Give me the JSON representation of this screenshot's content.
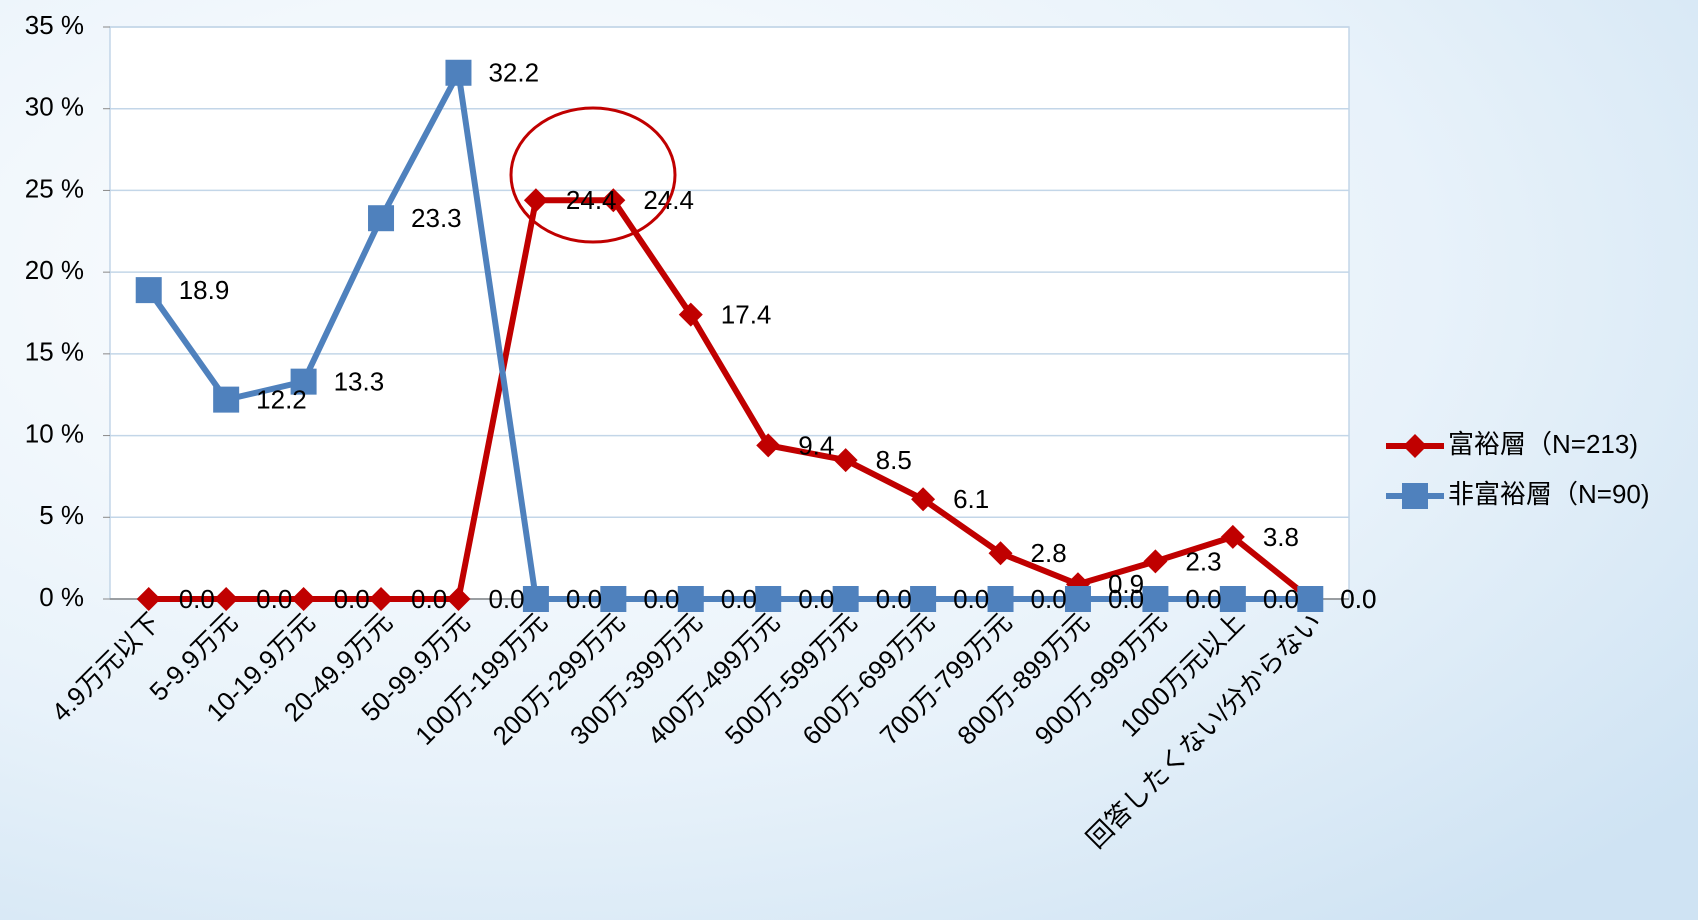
{
  "chart_data": {
    "type": "line",
    "categories": [
      "4.9万元以下",
      "5-9.9万元",
      "10-19.9万元",
      "20-49.9万元",
      "50-99.9万元",
      "100万-199万元",
      "200万-299万元",
      "300万-399万元",
      "400万-499万元",
      "500万-599万元",
      "600万-699万元",
      "700万-799万元",
      "800万-899万元",
      "900万-999万元",
      "1000万元以上",
      "回答したくない/分からない"
    ],
    "series": [
      {
        "name": "富裕層（N=213)",
        "color": "#c00000",
        "marker": "diamond",
        "values": [
          0,
          0,
          0,
          0,
          0,
          24.4,
          24.4,
          17.4,
          9.4,
          8.5,
          6.1,
          2.8,
          0.9,
          2.3,
          3.8,
          0
        ],
        "value_labels": [
          "0.0",
          "0.0",
          "0.0",
          "0.0",
          "0.0",
          "24.4",
          "24.4",
          "17.4",
          "9.4",
          "8.5",
          "6.1",
          "2.8",
          "0.9",
          "2.3",
          "3.8",
          "0.0"
        ]
      },
      {
        "name": "非富裕層（N=90)",
        "color": "#4f81bd",
        "marker": "square",
        "values": [
          18.9,
          12.2,
          13.3,
          23.3,
          32.2,
          0,
          0,
          0,
          0,
          0,
          0,
          0,
          0,
          0,
          0,
          0
        ],
        "value_labels": [
          "18.9",
          "12.2",
          "13.3",
          "23.3",
          "32.2",
          "0.0",
          "0.0",
          "0.0",
          "0.0",
          "0.0",
          "0.0",
          "0.0",
          "0.0",
          "0.0",
          "0.0",
          "0.0"
        ]
      }
    ],
    "ylim": [
      0,
      35
    ],
    "yticks": [
      {
        "value": 0,
        "label": "0 %"
      },
      {
        "value": 5,
        "label": "5 %"
      },
      {
        "value": 10,
        "label": "10 %"
      },
      {
        "value": 15,
        "label": "15 %"
      },
      {
        "value": 20,
        "label": "20 %"
      },
      {
        "value": 25,
        "label": "25 %"
      },
      {
        "value": 30,
        "label": "30 %"
      },
      {
        "value": 35,
        "label": "35 %"
      }
    ],
    "grid": true,
    "legend": "right"
  }
}
